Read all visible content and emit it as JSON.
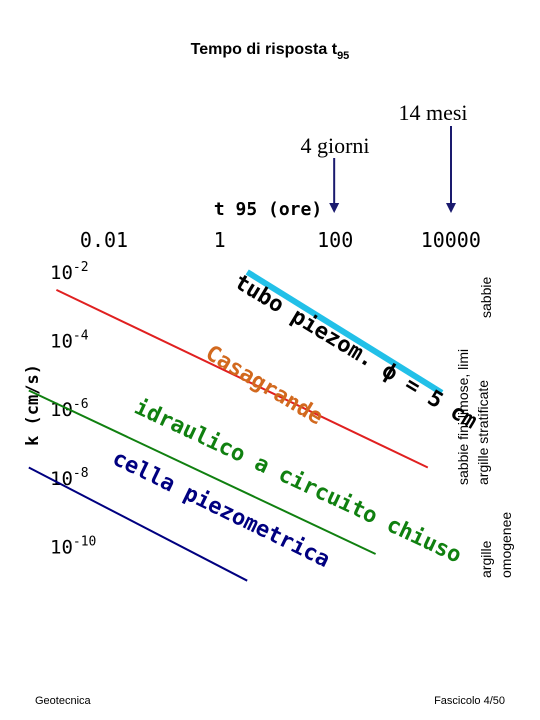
{
  "title": "Tempo di risposta t",
  "title_sub": "95",
  "footer": {
    "left": "Geotecnica",
    "right": "Fascicolo 4/50"
  },
  "chart_data": {
    "type": "line",
    "title": "Tempo di risposta t95",
    "xlabel": "t 95 (ore)",
    "ylabel": "k (cm/s)",
    "x_scale": "log",
    "y_scale": "log",
    "x_ticks": [
      {
        "label": "0.01",
        "value": 0.01
      },
      {
        "label": "1",
        "value": 1
      },
      {
        "label": "100",
        "value": 100
      },
      {
        "label": "10000",
        "value": 10000
      }
    ],
    "y_ticks": [
      {
        "base": "10",
        "exp": "-2",
        "value": 0.01
      },
      {
        "base": "10",
        "exp": "-4",
        "value": 0.0001
      },
      {
        "base": "10",
        "exp": "-6",
        "value": 1e-06
      },
      {
        "base": "10",
        "exp": "-8",
        "value": 1e-08
      },
      {
        "base": "10",
        "exp": "-10",
        "value": 1e-10
      }
    ],
    "series": [
      {
        "name": "tubo piezom. ϕ = 5 cm",
        "color": "#22c0e8",
        "points": [
          [
            3,
            0.01
          ],
          [
            7000,
            3e-06
          ]
        ]
      },
      {
        "name": "Casagrande",
        "color": "#e02020",
        "points": [
          [
            0.0015,
            0.003
          ],
          [
            4000,
            2e-08
          ]
        ]
      },
      {
        "name": "idraulico a circuito chiuso",
        "color": "#108010",
        "points": [
          [
            0.0005,
            3.5e-06
          ],
          [
            500,
            6e-11
          ]
        ]
      },
      {
        "name": "cella piezometrica",
        "color": "#000080",
        "points": [
          [
            0.0005,
            2e-08
          ],
          [
            3,
            1e-11
          ]
        ]
      }
    ],
    "annotations": [
      {
        "text": "4 giorni",
        "x": 96,
        "arrow": true
      },
      {
        "text": "14 mesi",
        "x": 10080,
        "arrow": true
      }
    ],
    "right_labels": [
      {
        "text": "sabbie"
      },
      {
        "text": "sabbie fini limose, limi"
      },
      {
        "text": "argille stratificate"
      },
      {
        "text": "argille"
      },
      {
        "text": "omogenee"
      }
    ]
  }
}
